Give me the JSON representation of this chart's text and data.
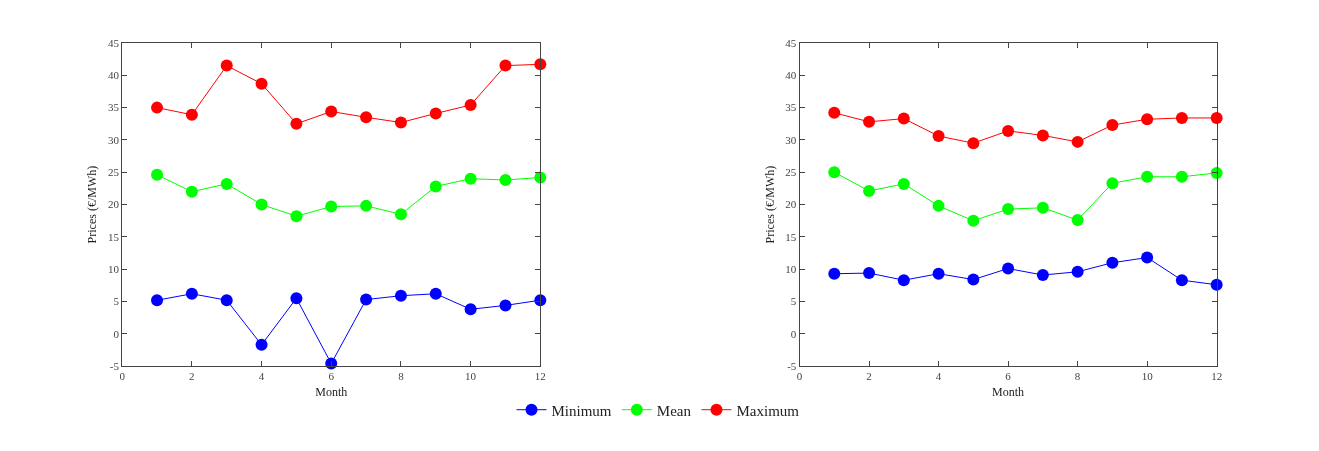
{
  "chart_data": [
    {
      "type": "line",
      "xlabel": "Month",
      "ylabel": "Prices (€/MWh)",
      "x": [
        1,
        2,
        3,
        4,
        5,
        6,
        7,
        8,
        9,
        10,
        11,
        12
      ],
      "xlim": [
        0,
        12
      ],
      "xticks": [
        0,
        2,
        4,
        6,
        8,
        10,
        12
      ],
      "ylim": [
        -5,
        45
      ],
      "yticks": [
        -5,
        0,
        5,
        10,
        15,
        20,
        25,
        30,
        35,
        40,
        45
      ],
      "legend": "bottom",
      "marker": "circle",
      "line_style": "solid",
      "series": [
        {
          "name": "Minimum",
          "color": "#0000ff",
          "values": [
            5.2,
            6.2,
            5.2,
            -1.7,
            5.5,
            -4.6,
            5.3,
            5.9,
            6.2,
            3.8,
            4.4,
            5.2
          ]
        },
        {
          "name": "Mean",
          "color": "#00ff00",
          "values": [
            24.6,
            22.0,
            23.2,
            20.0,
            18.2,
            19.7,
            19.8,
            18.5,
            22.8,
            24.0,
            23.8,
            24.2
          ]
        },
        {
          "name": "Maximum",
          "color": "#ff0000",
          "values": [
            35.0,
            33.9,
            41.5,
            38.7,
            32.5,
            34.4,
            33.5,
            32.7,
            34.1,
            35.4,
            41.5,
            41.7
          ]
        }
      ]
    },
    {
      "type": "line",
      "xlabel": "Month",
      "ylabel": "Prices (€/MWh)",
      "x": [
        1,
        2,
        3,
        4,
        5,
        6,
        7,
        8,
        9,
        10,
        11,
        12
      ],
      "xlim": [
        0,
        12
      ],
      "xticks": [
        0,
        2,
        4,
        6,
        8,
        10,
        12
      ],
      "ylim": [
        -5,
        45
      ],
      "yticks": [
        -5,
        0,
        5,
        10,
        15,
        20,
        25,
        30,
        35,
        40,
        45
      ],
      "marker": "circle",
      "line_style": "solid",
      "series": [
        {
          "color": "#0000ff",
          "values": [
            9.3,
            9.4,
            8.3,
            9.3,
            8.4,
            10.1,
            9.1,
            9.6,
            11.0,
            11.8,
            8.3,
            7.6
          ]
        },
        {
          "color": "#00ff00",
          "values": [
            25.0,
            22.1,
            23.2,
            19.8,
            17.5,
            19.3,
            19.5,
            17.6,
            23.3,
            24.3,
            24.3,
            24.9
          ]
        },
        {
          "color": "#ff0000",
          "values": [
            34.2,
            32.8,
            33.3,
            30.6,
            29.5,
            31.4,
            30.7,
            29.7,
            32.3,
            33.2,
            33.4,
            33.4
          ]
        }
      ]
    }
  ]
}
